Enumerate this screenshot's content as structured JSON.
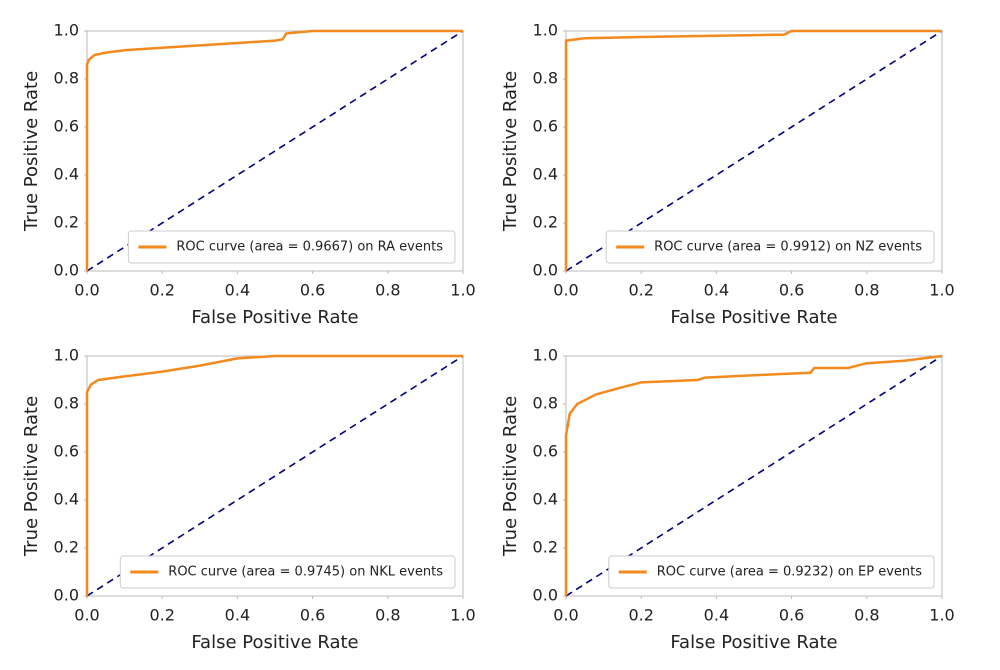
{
  "chart_data": [
    {
      "type": "line",
      "xlabel": "False Positive Rate",
      "ylabel": "True Positive Rate",
      "legend": "lower right",
      "xlim": [
        0,
        1
      ],
      "ylim": [
        0,
        1
      ],
      "xticks": [
        {
          "value": 0,
          "label": "0.0"
        },
        0.2,
        0.4,
        0.6,
        0.8,
        {
          "value": 1,
          "label": "1.0"
        }
      ],
      "yticks": [
        {
          "value": 0,
          "label": "0.0"
        },
        0.2,
        0.4,
        0.6,
        0.8,
        {
          "value": 1,
          "label": "1.0"
        }
      ],
      "series": [
        {
          "name": "ROC curve (area = 0.9667) on RA events",
          "color": "#f28a1e",
          "x": [
            0,
            0,
            0.005,
            0.02,
            0.05,
            0.1,
            0.2,
            0.3,
            0.4,
            0.5,
            0.52,
            0.53,
            0.6,
            0.8,
            1.0
          ],
          "values": [
            0,
            0.86,
            0.88,
            0.9,
            0.91,
            0.92,
            0.93,
            0.94,
            0.95,
            0.96,
            0.965,
            0.99,
            1,
            1,
            1
          ]
        }
      ],
      "reference_line": {
        "color": "#000080",
        "dashed": true,
        "x": [
          0,
          1
        ],
        "values": [
          0,
          1
        ]
      }
    },
    {
      "type": "line",
      "xlabel": "False Positive Rate",
      "ylabel": "True Positive Rate",
      "legend": "lower right",
      "xlim": [
        0,
        1
      ],
      "ylim": [
        0,
        1
      ],
      "xticks": [
        {
          "value": 0,
          "label": "0.0"
        },
        0.2,
        0.4,
        0.6,
        0.8,
        {
          "value": 1,
          "label": "1.0"
        }
      ],
      "yticks": [
        {
          "value": 0,
          "label": "0.0"
        },
        0.2,
        0.4,
        0.6,
        0.8,
        {
          "value": 1,
          "label": "1.0"
        }
      ],
      "series": [
        {
          "name": "ROC curve (area = 0.9912) on NZ events",
          "color": "#f28a1e",
          "x": [
            0,
            0,
            0.05,
            0.2,
            0.4,
            0.58,
            0.6,
            1
          ],
          "values": [
            0,
            0.96,
            0.97,
            0.975,
            0.98,
            0.985,
            1,
            1
          ]
        }
      ],
      "reference_line": {
        "color": "#000080",
        "dashed": true,
        "x": [
          0,
          1
        ],
        "values": [
          0,
          1
        ]
      }
    },
    {
      "type": "line",
      "xlabel": "False Positive Rate",
      "ylabel": "True Positive Rate",
      "legend": "lower right",
      "xlim": [
        0,
        1
      ],
      "ylim": [
        0,
        1
      ],
      "xticks": [
        {
          "value": 0,
          "label": "0.0"
        },
        0.2,
        0.4,
        0.6,
        0.8,
        {
          "value": 1,
          "label": "1.0"
        }
      ],
      "yticks": [
        {
          "value": 0,
          "label": "0.0"
        },
        0.2,
        0.4,
        0.6,
        0.8,
        {
          "value": 1,
          "label": "1.0"
        }
      ],
      "series": [
        {
          "name": "ROC curve (area = 0.9745) on NKL events",
          "color": "#f28a1e",
          "x": [
            0,
            0,
            0.01,
            0.03,
            0.1,
            0.2,
            0.3,
            0.4,
            0.5,
            1
          ],
          "values": [
            0,
            0.85,
            0.88,
            0.9,
            0.915,
            0.935,
            0.96,
            0.99,
            1,
            1
          ]
        }
      ],
      "reference_line": {
        "color": "#000080",
        "dashed": true,
        "x": [
          0,
          1
        ],
        "values": [
          0,
          1
        ]
      }
    },
    {
      "type": "line",
      "xlabel": "False Positive Rate",
      "ylabel": "True Positive Rate",
      "legend": "lower right",
      "xlim": [
        0,
        1
      ],
      "ylim": [
        0,
        1
      ],
      "xticks": [
        {
          "value": 0,
          "label": "0.0"
        },
        0.2,
        0.4,
        0.6,
        0.8,
        {
          "value": 1,
          "label": "1.0"
        }
      ],
      "yticks": [
        {
          "value": 0,
          "label": "0.0"
        },
        0.2,
        0.4,
        0.6,
        0.8,
        {
          "value": 1,
          "label": "1.0"
        }
      ],
      "series": [
        {
          "name": "ROC curve (area = 0.9232) on EP events",
          "color": "#f28a1e",
          "x": [
            0,
            0,
            0.01,
            0.03,
            0.08,
            0.15,
            0.2,
            0.35,
            0.37,
            0.5,
            0.65,
            0.66,
            0.75,
            0.8,
            0.9,
            1
          ],
          "values": [
            0,
            0.67,
            0.76,
            0.8,
            0.84,
            0.87,
            0.89,
            0.9,
            0.91,
            0.92,
            0.93,
            0.95,
            0.95,
            0.97,
            0.98,
            1
          ]
        }
      ],
      "reference_line": {
        "color": "#000080",
        "dashed": true,
        "x": [
          0,
          1
        ],
        "values": [
          0,
          1
        ]
      }
    }
  ]
}
